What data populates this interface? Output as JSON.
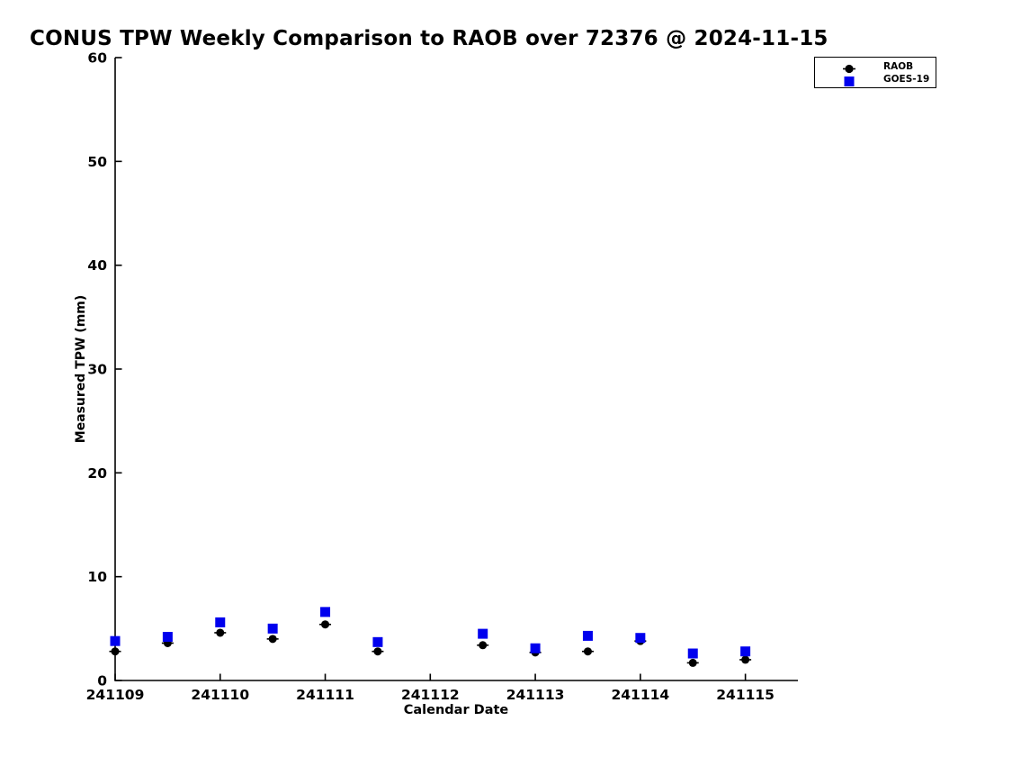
{
  "chart_data": {
    "type": "scatter",
    "title": "CONUS TPW Weekly Comparison to RAOB over 72376 @ 2024-11-15",
    "xlabel": "Calendar Date",
    "ylabel": "Measured TPW (mm)",
    "xlim": [
      241109,
      241115.5
    ],
    "ylim": [
      0,
      60
    ],
    "x_ticks": [
      241109,
      241110,
      241111,
      241112,
      241113,
      241114,
      241115
    ],
    "y_ticks": [
      0,
      10,
      20,
      30,
      40,
      50,
      60
    ],
    "grid": false,
    "background_color": "#ffffff",
    "axis_color": "#000000",
    "x": [
      241109,
      241109.5,
      241110,
      241110.5,
      241111,
      241111.5,
      241112.5,
      241113,
      241113.5,
      241114,
      241114.5,
      241115
    ],
    "series": [
      {
        "name": "RAOB",
        "marker": "circle",
        "color": "#000000",
        "errorbars": "small-x-caps",
        "values": [
          2.8,
          3.6,
          4.6,
          4.0,
          5.4,
          2.8,
          3.4,
          2.7,
          2.8,
          3.8,
          1.7,
          2.0
        ]
      },
      {
        "name": "GOES-19",
        "marker": "square",
        "color": "#0000ee",
        "errorbars": "none",
        "values": [
          3.8,
          4.2,
          5.6,
          5.0,
          6.6,
          3.7,
          4.5,
          3.1,
          4.3,
          4.1,
          2.6,
          2.8
        ]
      }
    ],
    "legend": {
      "position": "top-right",
      "entries": [
        {
          "label": "RAOB",
          "marker": "circle",
          "color": "#000000"
        },
        {
          "label": "GOES-19",
          "marker": "square",
          "color": "#0000ee"
        }
      ]
    }
  }
}
